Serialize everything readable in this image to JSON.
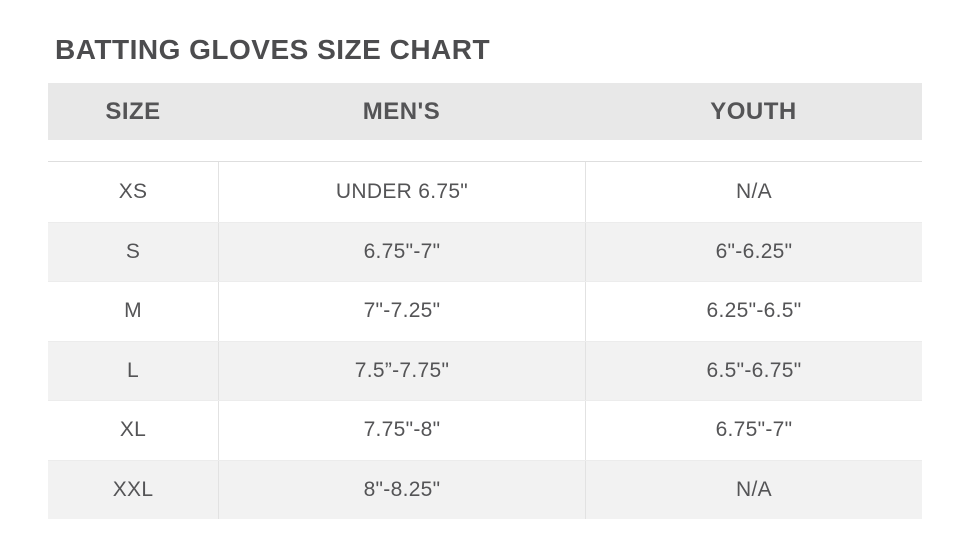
{
  "page": {
    "title": "BATTING GLOVES SIZE CHART"
  },
  "table": {
    "columns": [
      "SIZE",
      "MEN'S",
      "YOUTH"
    ],
    "rows": [
      {
        "size": "XS",
        "mens": "UNDER 6.75\"",
        "youth": "N/A"
      },
      {
        "size": "S",
        "mens": "6.75\"-7\"",
        "youth": "6\"-6.25\""
      },
      {
        "size": "M",
        "mens": "7\"-7.25\"",
        "youth": "6.25\"-6.5\""
      },
      {
        "size": "L",
        "mens": "7.5”-7.75\"",
        "youth": "6.5\"-6.75\""
      },
      {
        "size": "XL",
        "mens": "7.75\"-8\"",
        "youth": "6.75\"-7\""
      },
      {
        "size": "XXL",
        "mens": "8\"-8.25\"",
        "youth": "N/A"
      }
    ]
  },
  "colors": {
    "header_bg": "#e8e8e8",
    "row_stripe_bg": "#f2f2f2",
    "text": "#545456",
    "title_text": "#4c4c4e",
    "column_divider": "#e2e2e2"
  },
  "chart_data": {
    "type": "table",
    "title": "BATTING GLOVES SIZE CHART",
    "columns": [
      "SIZE",
      "MEN'S",
      "YOUTH"
    ],
    "rows": [
      [
        "XS",
        "UNDER 6.75\"",
        "N/A"
      ],
      [
        "S",
        "6.75\"-7\"",
        "6\"-6.25\""
      ],
      [
        "M",
        "7\"-7.25\"",
        "6.25\"-6.5\""
      ],
      [
        "L",
        "7.5”-7.75\"",
        "6.5\"-6.75\""
      ],
      [
        "XL",
        "7.75\"-8\"",
        "6.75\"-7\""
      ],
      [
        "XXL",
        "8\"-8.25\"",
        "N/A"
      ]
    ],
    "layout": {
      "header_background": "#e8e8e8",
      "striped_rows": true,
      "stripe_background": "#f2f2f2",
      "all_text_centered": true
    }
  }
}
